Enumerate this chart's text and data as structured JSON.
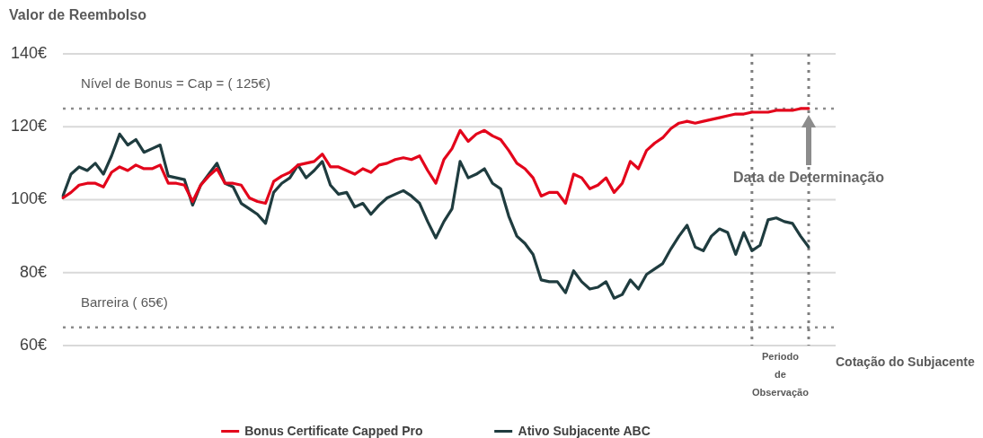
{
  "chart_data": {
    "type": "line",
    "ylabel": "Valor de Reembolso",
    "xlabel": "Cotação do Subjacente",
    "categories": [
      null,
      null,
      null,
      null,
      null,
      null,
      null,
      null,
      null,
      null,
      null,
      null,
      null,
      null,
      null,
      null,
      null,
      null,
      null,
      null,
      null,
      null,
      null,
      null,
      null,
      null,
      null,
      null,
      null,
      null,
      null,
      null,
      null,
      null,
      null,
      null,
      null,
      null,
      null,
      null,
      null,
      null,
      null,
      null,
      null,
      null,
      null,
      null,
      null,
      null,
      null,
      null,
      null,
      null,
      null,
      null,
      null,
      null,
      null,
      null,
      null,
      null,
      null,
      null,
      null,
      null,
      null,
      null,
      null,
      null,
      null,
      null,
      null,
      null,
      null,
      null,
      null,
      null,
      null,
      null,
      null,
      null,
      null,
      null,
      null,
      null,
      null,
      null,
      null,
      null,
      null,
      null,
      null
    ],
    "series": [
      {
        "name": "Bonus Certificate Capped Pro",
        "color": "#e3051b",
        "values": [
          100.5,
          102,
          104,
          104.5,
          104.5,
          103.5,
          107.5,
          109,
          108,
          109.5,
          108.5,
          108.5,
          109.5,
          104.5,
          104.5,
          104,
          99.5,
          104,
          106.5,
          108.5,
          104.5,
          104.5,
          104,
          100.5,
          99.5,
          99,
          105,
          106.5,
          107.5,
          109.5,
          110,
          110.5,
          112.5,
          109,
          109,
          108,
          107,
          108.5,
          107.5,
          109.5,
          110,
          111,
          111.5,
          111,
          112,
          108,
          104.5,
          111,
          114,
          119,
          116,
          118,
          119,
          117.5,
          116.5,
          113.5,
          110,
          108.5,
          106,
          101,
          102,
          102,
          99,
          107,
          106,
          103,
          104,
          106,
          102,
          104.5,
          110.5,
          108.5,
          113.5,
          115.5,
          117,
          119.5,
          121,
          121.5,
          121,
          121.5,
          122,
          122.5,
          123,
          123.5,
          123.5,
          124,
          124,
          124,
          124.5,
          124.5,
          124.5,
          125,
          125
        ]
      },
      {
        "name": "Ativo Subjacente ABC",
        "color": "#1f3c3f",
        "values": [
          101,
          107,
          109,
          108,
          110,
          107,
          112,
          118,
          115,
          116.5,
          113,
          114,
          115,
          106.5,
          106,
          105.5,
          98.5,
          104,
          107,
          110,
          104.5,
          103.5,
          99,
          97.5,
          96,
          93.5,
          102,
          104.5,
          106,
          109.5,
          106,
          108,
          110.5,
          104,
          101.5,
          102,
          98,
          99,
          96,
          98.5,
          100.5,
          101.5,
          102.5,
          101,
          99,
          94,
          89.5,
          94,
          97.5,
          110.5,
          106,
          107,
          108.5,
          104.5,
          103,
          95.5,
          90,
          88,
          85,
          78,
          77.5,
          77.5,
          74.5,
          80.5,
          77.5,
          75.5,
          76,
          77.5,
          73,
          74,
          78,
          75.5,
          79.5,
          81,
          82.5,
          86.5,
          90,
          93,
          87,
          86,
          90,
          92,
          91,
          85,
          91,
          86,
          87.5,
          94.5,
          95,
          94,
          93.5,
          90,
          87
        ]
      }
    ],
    "ylim": [
      60,
      140
    ],
    "yticks": [
      {
        "value": 60,
        "label": "60€"
      },
      {
        "value": 80,
        "label": "80€"
      },
      {
        "value": 100,
        "label": "100€"
      },
      {
        "value": 120,
        "label": "120€"
      },
      {
        "value": 140,
        "label": "140€"
      }
    ],
    "grid": "y",
    "ref_lines": [
      {
        "axis": "y",
        "value": 125,
        "label": "Nível de Bonus = Cap = ( 125€)",
        "color": "#8c8c8c",
        "line_style": "dotted"
      },
      {
        "axis": "y",
        "value": 65,
        "label": "Barreira ( 65€)",
        "color": "#8c8c8c",
        "line_style": "dotted"
      }
    ],
    "annotations": [
      "Data de Determinação",
      "Periodo de Observação"
    ],
    "legend": "bottom"
  }
}
